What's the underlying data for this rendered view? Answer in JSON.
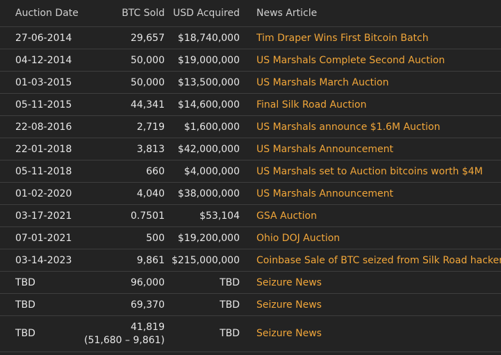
{
  "table": {
    "headers": {
      "date": "Auction Date",
      "btc": "BTC Sold",
      "usd": "USD Acquired",
      "news": "News Article"
    },
    "rows": [
      {
        "date": "27-06-2014",
        "btc": "29,657",
        "btc_sub": "",
        "usd": "$18,740,000",
        "news": "Tim Draper Wins First Bitcoin Batch"
      },
      {
        "date": "04-12-2014",
        "btc": "50,000",
        "btc_sub": "",
        "usd": "$19,000,000",
        "news": "US Marshals Complete Second Auction"
      },
      {
        "date": "01-03-2015",
        "btc": "50,000",
        "btc_sub": "",
        "usd": "$13,500,000",
        "news": "US Marshals March Auction"
      },
      {
        "date": "05-11-2015",
        "btc": "44,341",
        "btc_sub": "",
        "usd": "$14,600,000",
        "news": "Final Silk Road Auction"
      },
      {
        "date": "22-08-2016",
        "btc": "2,719",
        "btc_sub": "",
        "usd": "$1,600,000",
        "news": "US Marshals announce $1.6M Auction"
      },
      {
        "date": "22-01-2018",
        "btc": "3,813",
        "btc_sub": "",
        "usd": "$42,000,000",
        "news": "US Marshals Announcement"
      },
      {
        "date": "05-11-2018",
        "btc": "660",
        "btc_sub": "",
        "usd": "$4,000,000",
        "news": "US Marshals set to Auction bitcoins worth $4M"
      },
      {
        "date": "01-02-2020",
        "btc": "4,040",
        "btc_sub": "",
        "usd": "$38,000,000",
        "news": "US Marshals Announcement"
      },
      {
        "date": "03-17-2021",
        "btc": "0.7501",
        "btc_sub": "",
        "usd": "$53,104",
        "news": "GSA Auction"
      },
      {
        "date": "07-01-2021",
        "btc": "500",
        "btc_sub": "",
        "usd": "$19,200,000",
        "news": "Ohio DOJ Auction"
      },
      {
        "date": "03-14-2023",
        "btc": "9,861",
        "btc_sub": "",
        "usd": "$215,000,000",
        "news": "Coinbase Sale of BTC seized from Silk Road hacker"
      },
      {
        "date": "TBD",
        "btc": "96,000",
        "btc_sub": "",
        "usd": "TBD",
        "news": "Seizure News"
      },
      {
        "date": "TBD",
        "btc": "69,370",
        "btc_sub": "",
        "usd": "TBD",
        "news": "Seizure News"
      },
      {
        "date": "TBD",
        "btc": "41,819",
        "btc_sub": "(51,680 – 9,861)",
        "usd": "TBD",
        "news": "Seizure News"
      }
    ]
  },
  "colors": {
    "background": "#232323",
    "text": "#e8e8e8",
    "link": "#f2a73a",
    "divider": "#3e3e3e"
  }
}
